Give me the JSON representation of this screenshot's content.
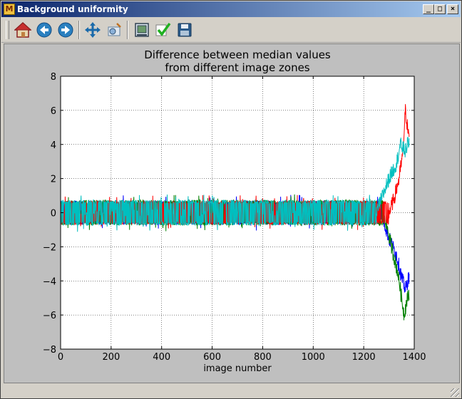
{
  "window": {
    "title": "Background uniformity",
    "app_icon_letter": "M",
    "controls": {
      "minimize": "_",
      "maximize": "□",
      "close": "×"
    }
  },
  "toolbar": {
    "buttons": [
      {
        "name": "home",
        "icon": "home-icon"
      },
      {
        "name": "back",
        "icon": "back-arrow-icon"
      },
      {
        "name": "forward",
        "icon": "forward-arrow-icon"
      },
      {
        "name": "pan",
        "icon": "pan-icon"
      },
      {
        "name": "zoom",
        "icon": "zoom-icon"
      },
      {
        "name": "subplots",
        "icon": "subplots-icon"
      },
      {
        "name": "check",
        "icon": "check-icon"
      },
      {
        "name": "save",
        "icon": "save-icon"
      }
    ]
  },
  "chart_data": {
    "type": "line",
    "title": "Difference between median values\nfrom different image zones",
    "title_lines": [
      "Difference between median values",
      "from different image zones"
    ],
    "xlabel": "image number",
    "ylabel": "",
    "xlim": [
      0,
      1400
    ],
    "ylim": [
      -8,
      8
    ],
    "x_ticks": [
      0,
      200,
      400,
      600,
      800,
      1000,
      1200,
      1400
    ],
    "y_ticks": [
      -8,
      -6,
      -4,
      -2,
      0,
      2,
      4,
      6,
      8
    ],
    "grid": true,
    "colors": {
      "blue": "#0000ff",
      "green": "#008000",
      "red": "#ff0000",
      "cyan": "#00bfbf"
    },
    "series": [
      {
        "color": "#0000ff",
        "noise_end_x": 1270,
        "noise_amplitude": 0.7,
        "trend": [
          [
            1270,
            0
          ],
          [
            1300,
            -1.5
          ],
          [
            1330,
            -2.5
          ],
          [
            1350,
            -3.8
          ],
          [
            1365,
            -4.5
          ],
          [
            1380,
            -3.7
          ]
        ]
      },
      {
        "color": "#008000",
        "noise_end_x": 1280,
        "noise_amplitude": 0.75,
        "trend": [
          [
            1280,
            0
          ],
          [
            1310,
            -2
          ],
          [
            1335,
            -3.5
          ],
          [
            1360,
            -6.0
          ],
          [
            1370,
            -5.2
          ],
          [
            1380,
            -4.7
          ]
        ]
      },
      {
        "color": "#ff0000",
        "noise_end_x": 1300,
        "noise_amplitude": 0.7,
        "trend": [
          [
            1300,
            0
          ],
          [
            1320,
            0.8
          ],
          [
            1340,
            2.0
          ],
          [
            1355,
            3.5
          ],
          [
            1365,
            6.0
          ],
          [
            1372,
            5.2
          ],
          [
            1380,
            4.2
          ]
        ]
      },
      {
        "color": "#00bfbf",
        "noise_end_x": 1250,
        "noise_amplitude": 0.75,
        "trend": [
          [
            1250,
            0
          ],
          [
            1280,
            1.2
          ],
          [
            1300,
            2.0
          ],
          [
            1330,
            2.9
          ],
          [
            1345,
            4.0
          ],
          [
            1365,
            3.6
          ],
          [
            1380,
            4.3
          ]
        ]
      }
    ]
  }
}
